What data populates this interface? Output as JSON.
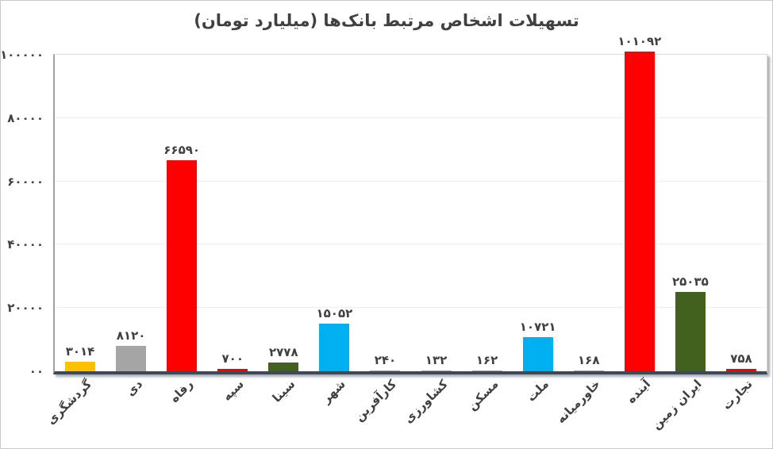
{
  "frame": {
    "background": "#FFFFFF",
    "border_color": "#C9C9C9"
  },
  "chart_data": {
    "type": "bar",
    "title": "تسهیلات اشخاص مرتبط بانک‌ها (میلیارد تومان)",
    "xlabel": "",
    "ylabel": "",
    "ylim": [
      0,
      100000
    ],
    "grid": true,
    "legend": "none",
    "categories": [
      "گردشگری",
      "دی",
      "رفاه",
      "سپه",
      "سینا",
      "شهر",
      "کارآفرین",
      "کشاورزی",
      "مسکن",
      "ملت",
      "خاورمیانه",
      "آینده",
      "ایران زمین",
      "تجارت"
    ],
    "values": [
      3014,
      8120,
      66590,
      700,
      2778,
      15052,
      240,
      132,
      162,
      10721,
      168,
      101092,
      25035,
      758
    ],
    "value_labels": [
      "۳۰۱۴",
      "۸۱۲۰",
      "۶۶۵۹۰",
      "۷۰۰",
      "۲۷۷۸",
      "۱۵۰۵۲",
      "۲۴۰",
      "۱۳۲",
      "۱۶۲",
      "۱۰۷۲۱",
      "۱۶۸",
      "۱۰۱۰۹۲",
      "۲۵۰۳۵",
      "۷۵۸"
    ],
    "bar_colors": [
      "#FFC000",
      "#A5A5A5",
      "#FF0000",
      "#FF0000",
      "#42601E",
      "#00B0F0",
      "#A5A5A5",
      "#A5A5A5",
      "#A5A5A5",
      "#00B0F0",
      "#A5A5A5",
      "#FF0000",
      "#42601E",
      "#FF0000"
    ],
    "y_ticks": [
      {
        "value": 100000,
        "label": "۱۰۰۰۰۰"
      },
      {
        "value": 80000,
        "label": "۸۰۰۰۰"
      },
      {
        "value": 60000,
        "label": "۶۰۰۰۰"
      },
      {
        "value": 40000,
        "label": "۴۰۰۰۰"
      },
      {
        "value": 20000,
        "label": "۲۰۰۰۰"
      },
      {
        "value": 0,
        "label": "۰۰"
      }
    ],
    "colors": {
      "title_text": "#404040",
      "label_text": "#404040",
      "axis_text": "#404040",
      "gridline": "#EFEFEF",
      "axis_shadow": "#3E4956"
    }
  }
}
